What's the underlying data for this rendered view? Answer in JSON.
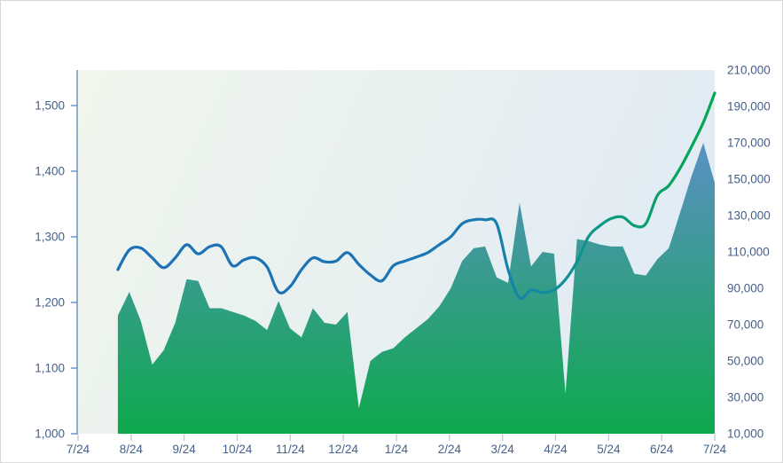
{
  "chart_data": {
    "type": "combo-line-area",
    "title": "",
    "legend": "none",
    "grid": "off",
    "x_axis": {
      "tick_labels": [
        "7/24",
        "8/24",
        "9/24",
        "10/24",
        "11/24",
        "12/24",
        "1/24",
        "2/24",
        "3/24",
        "4/24",
        "5/24",
        "6/24",
        "7/24"
      ],
      "data_start_month_offset": 0.75,
      "data_end_month_offset": 12
    },
    "left_axis": {
      "tick_labels": [
        "1,000",
        "1,100",
        "1,200",
        "1,300",
        "1,400",
        "1,500"
      ],
      "min": 1000,
      "tick_step": 100,
      "plot_top_value": 1554
    },
    "right_axis": {
      "tick_labels": [
        "10,000",
        "30,000",
        "50,000",
        "70,000",
        "90,000",
        "110,000",
        "130,000",
        "150,000",
        "170,000",
        "190,000",
        "210,000"
      ],
      "min": 10000,
      "tick_step": 20000,
      "max": 210000
    },
    "series": [
      {
        "name": "price-line",
        "type": "line",
        "axis": "left",
        "smooth": true,
        "stroke_width": 3.2,
        "gradient_stops": [
          [
            "0%",
            "#1E6FB8"
          ],
          [
            "55%",
            "#1C76B3"
          ],
          [
            "70%",
            "#1287A5"
          ],
          [
            "82%",
            "#0C9A83"
          ],
          [
            "92%",
            "#07A363"
          ],
          [
            "100%",
            "#04A74F"
          ]
        ],
        "values": [
          1250,
          1280,
          1283,
          1268,
          1253,
          1268,
          1288,
          1274,
          1285,
          1285,
          1256,
          1265,
          1268,
          1254,
          1216,
          1224,
          1250,
          1268,
          1262,
          1263,
          1276,
          1258,
          1242,
          1233,
          1256,
          1263,
          1269,
          1276,
          1288,
          1300,
          1320,
          1326,
          1326,
          1320,
          1250,
          1207,
          1219,
          1215,
          1219,
          1235,
          1262,
          1300,
          1317,
          1328,
          1330,
          1317,
          1320,
          1363,
          1378,
          1405,
          1438,
          1474,
          1519
        ]
      },
      {
        "name": "volume-area",
        "type": "area",
        "axis": "right",
        "smooth": false,
        "gradient_stops": [
          [
            "0%",
            "#5B90C5"
          ],
          [
            "100%",
            "#0EA94D"
          ]
        ],
        "values": [
          75000,
          88000,
          72000,
          48000,
          56000,
          71000,
          95000,
          94000,
          79000,
          79000,
          77000,
          75000,
          72000,
          67000,
          83000,
          68000,
          63000,
          79000,
          71000,
          70000,
          77000,
          24000,
          50000,
          55000,
          57000,
          63000,
          68000,
          73000,
          80000,
          90000,
          105000,
          112000,
          113000,
          96000,
          93000,
          137000,
          102000,
          110000,
          109000,
          32000,
          117000,
          116000,
          114000,
          113000,
          113000,
          98000,
          97000,
          106000,
          112000,
          132000,
          152000,
          170000,
          148000
        ]
      }
    ]
  },
  "colors": {
    "plot_bg_gradient": [
      [
        "0%",
        "#F0F6EC"
      ],
      [
        "100%",
        "#E1EBF4"
      ]
    ],
    "page_bg": "#FFFFFF",
    "frame_border": "#D7D7D7",
    "axis_line": "#4D7CB8",
    "x_tick": "#B9C3D2",
    "axis_label": "#44608A"
  }
}
